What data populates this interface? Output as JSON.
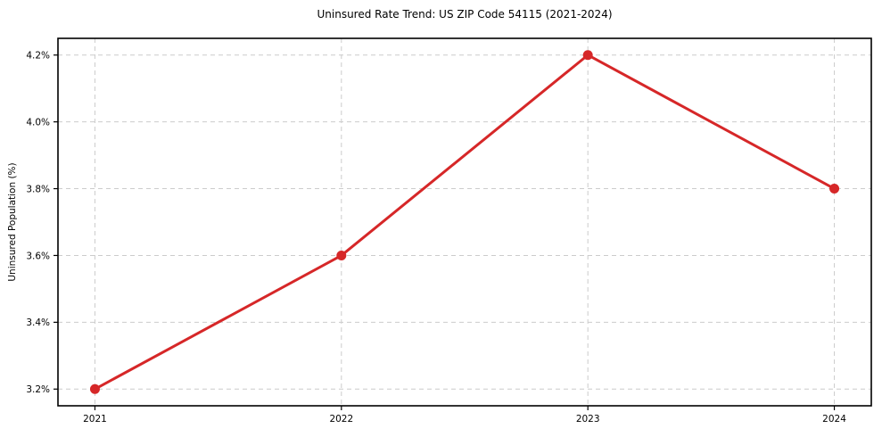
{
  "chart_data": {
    "type": "line",
    "title": "Uninsured Rate Trend: US ZIP Code 54115 (2021-2024)",
    "xlabel": "",
    "ylabel": "Uninsured Population (%)",
    "x": [
      2021,
      2022,
      2023,
      2024
    ],
    "series": [
      {
        "name": "Uninsured Rate",
        "values": [
          3.2,
          3.6,
          4.2,
          3.8
        ]
      }
    ],
    "xticks": [
      "2021",
      "2022",
      "2023",
      "2024"
    ],
    "yticks": [
      3.2,
      3.4,
      3.6,
      3.8,
      4.0,
      4.2
    ],
    "ytick_labels": [
      "3.2%",
      "3.4%",
      "3.6%",
      "3.8%",
      "4.0%",
      "4.2%"
    ],
    "xlim": [
      2020.85,
      2024.15
    ],
    "ylim": [
      3.15,
      4.25
    ],
    "grid": true,
    "grid_style": "dashed",
    "legend": "none",
    "colors": {
      "line": "#d62728",
      "marker": "#d62728",
      "grid": "#cccccc",
      "spine": "#000000",
      "text": "#000000",
      "background": "#ffffff"
    }
  }
}
